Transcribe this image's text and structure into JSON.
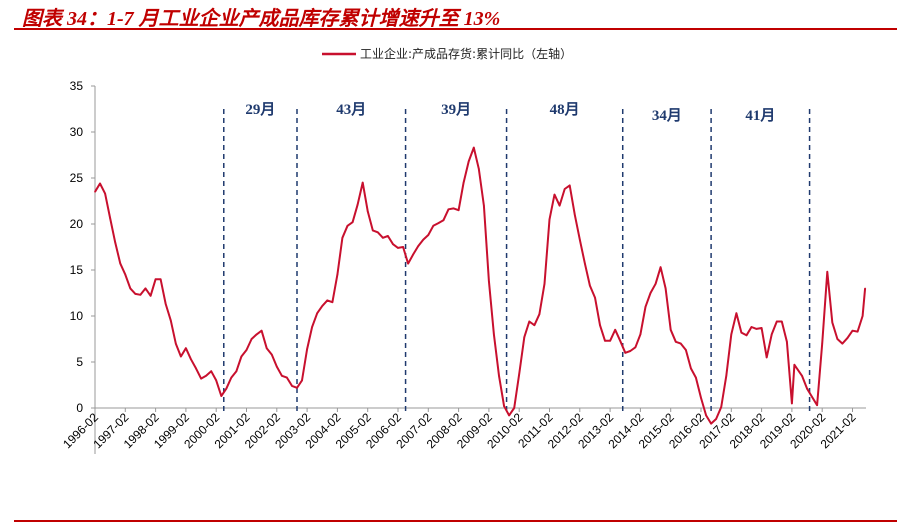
{
  "title": "图表 34：1-7 月工业企业产成品库存累计增速升至 13%",
  "colors": {
    "series": "#c8102e",
    "divider": "#1f3a6e",
    "title": "#c00000"
  },
  "chart_data": {
    "type": "line",
    "title": "",
    "xlabel": "",
    "ylabel": "",
    "ylim": [
      -5,
      35
    ],
    "yticks": [
      0,
      5,
      10,
      15,
      20,
      25,
      30,
      35
    ],
    "ytick_labels": [
      "0",
      "5",
      "10",
      "15",
      "20",
      "25",
      "30",
      "35"
    ],
    "xticks": [
      "1996-02",
      "1997-02",
      "1998-02",
      "1999-02",
      "2000-02",
      "2001-02",
      "2002-02",
      "2003-02",
      "2004-02",
      "2005-02",
      "2006-02",
      "2007-02",
      "2008-02",
      "2009-02",
      "2010-02",
      "2011-02",
      "2012-02",
      "2013-02",
      "2014-02",
      "2015-02",
      "2016-02",
      "2017-02",
      "2018-02",
      "2019-02",
      "2020-02",
      "2021-02"
    ],
    "grid": false,
    "legend": {
      "position": "top",
      "entries": [
        "工业企业:产成品存货:累计同比（左轴）"
      ]
    },
    "series": [
      {
        "name": "工业企业:产成品存货:累计同比（左轴）",
        "points": [
          [
            "1996-02",
            23.5
          ],
          [
            "1996-04",
            24.4
          ],
          [
            "1996-06",
            23.3
          ],
          [
            "1996-08",
            20.6
          ],
          [
            "1996-10",
            18
          ],
          [
            "1996-12",
            15.7
          ],
          [
            "1997-02",
            14.5
          ],
          [
            "1997-04",
            13
          ],
          [
            "1997-06",
            12.4
          ],
          [
            "1997-08",
            12.3
          ],
          [
            "1997-10",
            13
          ],
          [
            "1997-12",
            12.2
          ],
          [
            "1998-02",
            14
          ],
          [
            "1998-04",
            14
          ],
          [
            "1998-06",
            11.3
          ],
          [
            "1998-08",
            9.5
          ],
          [
            "1998-10",
            7
          ],
          [
            "1998-12",
            5.6
          ],
          [
            "1999-02",
            6.5
          ],
          [
            "1999-04",
            5.3
          ],
          [
            "1999-06",
            4.3
          ],
          [
            "1999-08",
            3.2
          ],
          [
            "1999-10",
            3.5
          ],
          [
            "1999-12",
            4
          ],
          [
            "2000-02",
            3
          ],
          [
            "2000-04",
            1.3
          ],
          [
            "2000-06",
            2.1
          ],
          [
            "2000-08",
            3.3
          ],
          [
            "2000-10",
            4
          ],
          [
            "2000-12",
            5.6
          ],
          [
            "2001-02",
            6.3
          ],
          [
            "2001-04",
            7.5
          ],
          [
            "2001-06",
            8
          ],
          [
            "2001-08",
            8.4
          ],
          [
            "2001-10",
            6.5
          ],
          [
            "2001-12",
            5.8
          ],
          [
            "2002-02",
            4.5
          ],
          [
            "2002-04",
            3.5
          ],
          [
            "2002-06",
            3.3
          ],
          [
            "2002-08",
            2.4
          ],
          [
            "2002-10",
            2.2
          ],
          [
            "2002-12",
            3
          ],
          [
            "2003-02",
            6.4
          ],
          [
            "2003-04",
            8.8
          ],
          [
            "2003-06",
            10.3
          ],
          [
            "2003-08",
            11.1
          ],
          [
            "2003-10",
            11.7
          ],
          [
            "2003-12",
            11.5
          ],
          [
            "2004-02",
            14.5
          ],
          [
            "2004-04",
            18.5
          ],
          [
            "2004-06",
            19.8
          ],
          [
            "2004-08",
            20.2
          ],
          [
            "2004-10",
            22.1
          ],
          [
            "2004-12",
            24.5
          ],
          [
            "2005-02",
            21.4
          ],
          [
            "2005-04",
            19.3
          ],
          [
            "2005-06",
            19.1
          ],
          [
            "2005-08",
            18.5
          ],
          [
            "2005-10",
            18.7
          ],
          [
            "2005-12",
            17.8
          ],
          [
            "2006-02",
            17.4
          ],
          [
            "2006-04",
            17.5
          ],
          [
            "2006-06",
            15.7
          ],
          [
            "2006-08",
            16.7
          ],
          [
            "2006-10",
            17.6
          ],
          [
            "2006-12",
            18.3
          ],
          [
            "2007-02",
            18.8
          ],
          [
            "2007-04",
            19.8
          ],
          [
            "2007-06",
            20.1
          ],
          [
            "2007-08",
            20.4
          ],
          [
            "2007-10",
            21.6
          ],
          [
            "2007-12",
            21.7
          ],
          [
            "2008-02",
            21.5
          ],
          [
            "2008-04",
            24.5
          ],
          [
            "2008-06",
            26.8
          ],
          [
            "2008-08",
            28.3
          ],
          [
            "2008-10",
            26
          ],
          [
            "2008-12",
            22
          ],
          [
            "2009-02",
            13.8
          ],
          [
            "2009-04",
            8
          ],
          [
            "2009-06",
            3.5
          ],
          [
            "2009-08",
            0.2
          ],
          [
            "2009-10",
            -0.8
          ],
          [
            "2009-12",
            0
          ],
          [
            "2010-02",
            3.7
          ],
          [
            "2010-04",
            7.7
          ],
          [
            "2010-06",
            9.4
          ],
          [
            "2010-08",
            9
          ],
          [
            "2010-10",
            10.2
          ],
          [
            "2010-12",
            13.5
          ],
          [
            "2011-02",
            20.5
          ],
          [
            "2011-04",
            23.2
          ],
          [
            "2011-06",
            22
          ],
          [
            "2011-08",
            23.8
          ],
          [
            "2011-10",
            24.2
          ],
          [
            "2011-12",
            21
          ],
          [
            "2012-02",
            18.3
          ],
          [
            "2012-04",
            15.7
          ],
          [
            "2012-06",
            13.3
          ],
          [
            "2012-08",
            12
          ],
          [
            "2012-10",
            9
          ],
          [
            "2012-12",
            7.3
          ],
          [
            "2013-02",
            7.3
          ],
          [
            "2013-04",
            8.5
          ],
          [
            "2013-06",
            7.3
          ],
          [
            "2013-08",
            6
          ],
          [
            "2013-10",
            6.2
          ],
          [
            "2013-12",
            6.6
          ],
          [
            "2014-02",
            8
          ],
          [
            "2014-04",
            11
          ],
          [
            "2014-06",
            12.5
          ],
          [
            "2014-08",
            13.5
          ],
          [
            "2014-10",
            15.3
          ],
          [
            "2014-12",
            13
          ],
          [
            "2015-02",
            8.5
          ],
          [
            "2015-04",
            7.2
          ],
          [
            "2015-06",
            7
          ],
          [
            "2015-08",
            6.3
          ],
          [
            "2015-10",
            4.3
          ],
          [
            "2015-12",
            3.3
          ],
          [
            "2016-02",
            1.1
          ],
          [
            "2016-04",
            -0.8
          ],
          [
            "2016-06",
            -1.7
          ],
          [
            "2016-08",
            -1.2
          ],
          [
            "2016-10",
            0.1
          ],
          [
            "2016-12",
            3.5
          ],
          [
            "2017-02",
            8
          ],
          [
            "2017-04",
            10.3
          ],
          [
            "2017-06",
            8.2
          ],
          [
            "2017-08",
            7.9
          ],
          [
            "2017-10",
            8.8
          ],
          [
            "2017-12",
            8.6
          ],
          [
            "2018-02",
            8.7
          ],
          [
            "2018-04",
            5.5
          ],
          [
            "2018-06",
            8
          ],
          [
            "2018-08",
            9.4
          ],
          [
            "2018-10",
            9.4
          ],
          [
            "2018-12",
            7.2
          ],
          [
            "2019-02",
            0.5
          ],
          [
            "2019-03",
            4.7
          ],
          [
            "2019-06",
            3.5
          ],
          [
            "2019-08",
            2.1
          ],
          [
            "2019-10",
            1.2
          ],
          [
            "2019-12",
            0.3
          ],
          [
            "2020-02",
            7
          ],
          [
            "2020-04",
            14.8
          ],
          [
            "2020-06",
            9.3
          ],
          [
            "2020-08",
            7.5
          ],
          [
            "2020-10",
            7
          ],
          [
            "2020-12",
            7.6
          ],
          [
            "2021-02",
            8.4
          ],
          [
            "2021-04",
            8.3
          ],
          [
            "2021-06",
            10
          ],
          [
            "2021-07",
            13
          ]
        ]
      }
    ],
    "dividers": [
      "2000-05",
      "2002-10",
      "2006-05",
      "2009-09",
      "2013-07",
      "2016-06",
      "2019-09"
    ],
    "annotations": [
      "29月",
      "43月",
      "39月",
      "48月",
      "34月",
      "41月"
    ]
  }
}
